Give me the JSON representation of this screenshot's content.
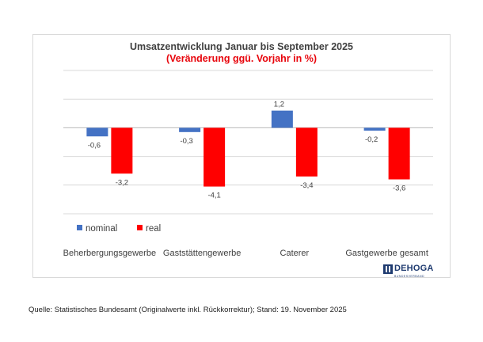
{
  "colors": {
    "nominal": "#4472c4",
    "real": "#ff0000",
    "grid": "#d9d9d9",
    "text": "#404040",
    "subtitle": "#e8060d"
  },
  "chart_data": {
    "type": "bar",
    "title": "Umsatzentwicklung Januar bis September 2025",
    "subtitle": "(Veränderung ggü. Vorjahr in %)",
    "categories": [
      "Beherbergungsgewerbe",
      "Gaststättengewerbe",
      "Caterer",
      "Gastgewerbe gesamt"
    ],
    "series": [
      {
        "name": "nominal",
        "values": [
          -0.6,
          -0.3,
          1.2,
          -0.2
        ],
        "labels": [
          "-0,6",
          "-0,3",
          "1,2",
          "-0,2"
        ],
        "color": "#4472c4"
      },
      {
        "name": "real",
        "values": [
          -3.2,
          -4.1,
          -3.4,
          -3.6
        ],
        "labels": [
          "-3,2",
          "-4,1",
          "-3,4",
          "-3,6"
        ],
        "color": "#ff0000"
      }
    ],
    "ylim": [
      -6,
      4
    ],
    "grid": true,
    "legend_position": "bottom-left"
  },
  "logo": {
    "text": "DEHOGA",
    "subtext": "BUNDESVERBAND"
  },
  "source": "Quelle: Statistisches Bundesamt (Originalwerte inkl. Rückkorrektur); Stand: 19. November 2025"
}
